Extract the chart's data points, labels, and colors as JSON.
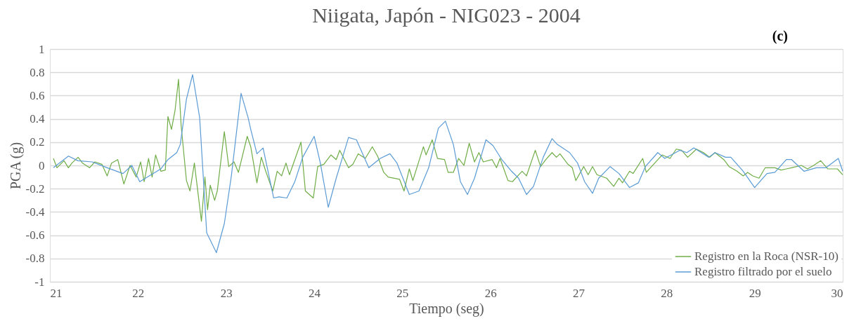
{
  "chart_data": {
    "type": "line",
    "title": "Niigata, Japón - NIG023 - 2004",
    "xlabel": "Tiempo (seg)",
    "ylabel": "PGA (g)",
    "annotations": [
      "(c)"
    ],
    "xlim": [
      21,
      30
    ],
    "xticks": [
      21,
      22,
      23,
      24,
      25,
      26,
      27,
      28,
      29,
      30
    ],
    "ylim": [
      -1,
      1
    ],
    "yticks": [
      -1,
      -0.8,
      -0.6,
      -0.4,
      -0.2,
      0,
      0.2,
      0.4,
      0.6,
      0.8,
      1
    ],
    "grid": "y",
    "legend": "bottom right",
    "marker": "none",
    "line_style": "solid",
    "series": [
      {
        "name": "Registro en la Roca (NSR-10)",
        "color": "#70ad47",
        "x": [
          21.04,
          21.08,
          21.16,
          21.21,
          21.25,
          21.32,
          21.37,
          21.45,
          21.51,
          21.59,
          21.65,
          21.7,
          21.77,
          21.84,
          21.91,
          21.98,
          22.03,
          22.07,
          22.12,
          22.16,
          22.2,
          22.26,
          22.31,
          22.34,
          22.38,
          22.42,
          22.46,
          22.49,
          22.55,
          22.59,
          22.64,
          22.72,
          22.76,
          22.79,
          22.82,
          22.87,
          22.9,
          22.98,
          23.03,
          23.09,
          23.14,
          23.24,
          23.28,
          23.35,
          23.4,
          23.45,
          23.53,
          23.58,
          23.63,
          23.68,
          23.72,
          23.85,
          23.9,
          23.99,
          24.04,
          24.11,
          24.19,
          24.25,
          24.29,
          24.39,
          24.44,
          24.5,
          24.58,
          24.66,
          24.72,
          24.79,
          24.84,
          24.97,
          25.02,
          25.08,
          25.12,
          25.24,
          25.27,
          25.34,
          25.4,
          25.48,
          25.52,
          25.58,
          25.64,
          25.7,
          25.76,
          25.82,
          25.87,
          25.92,
          26.02,
          26.07,
          26.11,
          26.2,
          26.25,
          26.36,
          26.41,
          26.51,
          26.57,
          26.63,
          26.7,
          26.75,
          26.79,
          26.88,
          26.93,
          26.97,
          27.06,
          27.11,
          27.16,
          27.21,
          27.32,
          27.4,
          27.46,
          27.5,
          27.58,
          27.62,
          27.73,
          27.77,
          27.83,
          27.95,
          28.04,
          28.11,
          28.17,
          28.24,
          28.34,
          28.42,
          28.49,
          28.55,
          28.65,
          28.71,
          28.8,
          28.87,
          28.92,
          28.98,
          29.05,
          29.12,
          29.23,
          29.3,
          29.36,
          29.42,
          29.53,
          29.6,
          29.67,
          29.75,
          29.83,
          29.94,
          30
        ],
        "values": [
          0.06,
          -0.02,
          0.04,
          -0.02,
          0.02,
          0.07,
          0.02,
          -0.02,
          0.03,
          0.01,
          -0.09,
          0.02,
          0.05,
          -0.16,
          0.0,
          -0.1,
          0.03,
          -0.14,
          0.06,
          -0.1,
          0.09,
          -0.05,
          -0.04,
          0.42,
          0.31,
          0.47,
          0.74,
          0.34,
          -0.13,
          -0.22,
          0.02,
          -0.48,
          -0.1,
          -0.38,
          -0.17,
          -0.3,
          -0.22,
          0.29,
          -0.01,
          0.03,
          -0.06,
          0.25,
          0.16,
          -0.15,
          0.07,
          -0.05,
          -0.22,
          -0.05,
          -0.09,
          0.02,
          -0.08,
          0.2,
          -0.22,
          -0.28,
          -0.01,
          0.01,
          0.09,
          0.05,
          0.13,
          -0.02,
          0.01,
          0.1,
          0.06,
          0.16,
          0.08,
          -0.06,
          -0.1,
          -0.12,
          -0.22,
          -0.03,
          -0.13,
          0.16,
          0.09,
          0.22,
          0.06,
          0.05,
          -0.06,
          -0.06,
          0.06,
          0.0,
          0.19,
          0.03,
          0.11,
          0.03,
          0.05,
          -0.02,
          0.06,
          -0.13,
          -0.14,
          -0.05,
          -0.09,
          0.13,
          -0.01,
          0.05,
          0.11,
          0.07,
          0.1,
          0.01,
          -0.02,
          -0.13,
          -0.01,
          -0.08,
          -0.01,
          -0.08,
          -0.11,
          -0.18,
          -0.11,
          -0.15,
          -0.05,
          -0.07,
          0.06,
          -0.06,
          -0.01,
          0.09,
          0.06,
          0.14,
          0.13,
          0.07,
          0.14,
          0.11,
          0.07,
          0.11,
          0.05,
          -0.01,
          -0.05,
          -0.09,
          -0.06,
          -0.09,
          -0.11,
          -0.02,
          -0.02,
          -0.04,
          -0.03,
          -0.02,
          0.0,
          -0.03,
          0.0,
          0.04,
          -0.03,
          -0.03,
          -0.08
        ]
      },
      {
        "name": "Registro filtrado por el suelo",
        "color": "#5b9bd5",
        "x": [
          21.04,
          21.21,
          21.32,
          21.48,
          21.65,
          21.83,
          21.93,
          22.02,
          22.15,
          22.26,
          22.34,
          22.44,
          22.48,
          22.55,
          22.62,
          22.7,
          22.78,
          22.89,
          22.98,
          23.06,
          23.17,
          23.25,
          23.28,
          23.35,
          23.42,
          23.54,
          23.6,
          23.69,
          23.78,
          23.87,
          24.0,
          24.07,
          24.16,
          24.25,
          24.39,
          24.48,
          24.62,
          24.75,
          24.86,
          24.94,
          25.08,
          25.19,
          25.3,
          25.41,
          25.49,
          25.58,
          25.66,
          25.74,
          25.82,
          25.95,
          26.03,
          26.13,
          26.24,
          26.32,
          26.41,
          26.49,
          26.6,
          26.7,
          26.76,
          26.9,
          26.99,
          27.07,
          27.16,
          27.23,
          27.36,
          27.46,
          27.58,
          27.68,
          27.76,
          27.9,
          27.98,
          28.15,
          28.23,
          28.31,
          28.48,
          28.55,
          28.67,
          28.73,
          28.87,
          29.0,
          29.14,
          29.23,
          29.36,
          29.42,
          29.56,
          29.7,
          29.81,
          29.95,
          30
        ],
        "values": [
          -0.02,
          0.08,
          0.04,
          0.03,
          -0.02,
          -0.07,
          0.0,
          -0.14,
          -0.08,
          -0.03,
          0.05,
          0.11,
          0.18,
          0.57,
          0.78,
          0.41,
          -0.58,
          -0.75,
          -0.5,
          -0.09,
          0.62,
          0.41,
          0.31,
          0.1,
          0.15,
          -0.28,
          -0.27,
          -0.28,
          -0.14,
          0.07,
          0.25,
          0.02,
          -0.36,
          -0.11,
          0.24,
          0.22,
          -0.02,
          0.06,
          0.1,
          0.02,
          -0.25,
          -0.22,
          -0.02,
          0.32,
          0.38,
          0.18,
          -0.14,
          -0.25,
          -0.11,
          0.22,
          0.17,
          0.05,
          -0.05,
          -0.11,
          -0.25,
          -0.18,
          0.07,
          0.23,
          0.18,
          0.11,
          0.02,
          -0.14,
          -0.24,
          -0.11,
          -0.01,
          -0.07,
          -0.19,
          -0.15,
          -0.01,
          0.11,
          0.06,
          0.13,
          0.11,
          0.15,
          0.07,
          0.11,
          0.07,
          0.07,
          -0.05,
          -0.19,
          -0.07,
          -0.06,
          0.05,
          0.05,
          -0.05,
          -0.02,
          -0.02,
          0.06,
          -0.05
        ]
      }
    ]
  }
}
